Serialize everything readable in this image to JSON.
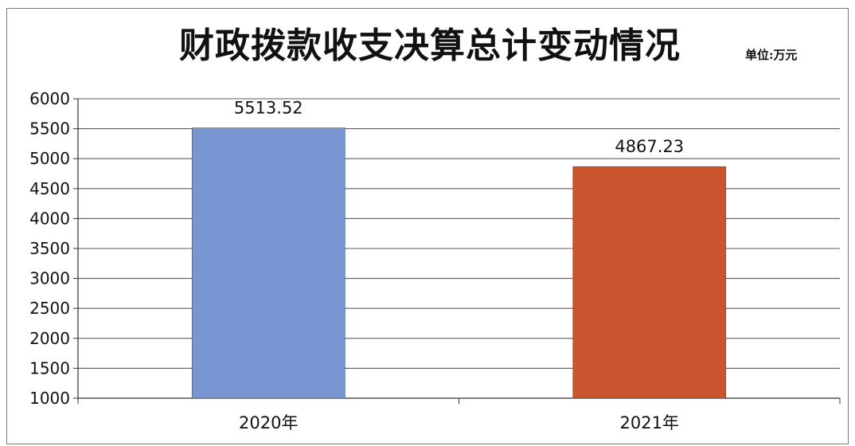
{
  "chart_data": {
    "type": "bar",
    "title": "财政拨款收支决算总计变动情况",
    "unit_note": "单位:万元",
    "categories": [
      "2020年",
      "2021年"
    ],
    "values": [
      5513.52,
      4867.23
    ],
    "data_labels": [
      "5513.52",
      "4867.23"
    ],
    "bar_colors": [
      "#7796d2",
      "#c9542e"
    ],
    "y_ticks": [
      1000,
      1500,
      2000,
      2500,
      3000,
      3500,
      4000,
      4500,
      5000,
      5500,
      6000
    ],
    "ylim": [
      1000,
      6000
    ],
    "xlabel": "",
    "ylabel": "",
    "grid": true,
    "legend": "none"
  }
}
